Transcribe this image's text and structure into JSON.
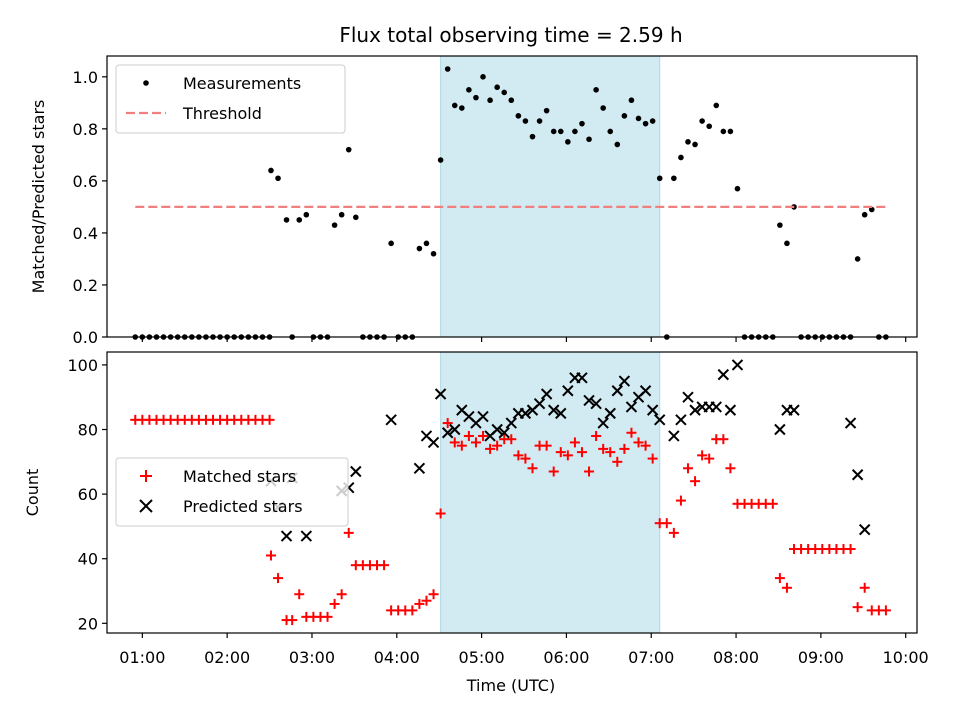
{
  "chart_data": {
    "title": "Flux total observing time = 2.59 h",
    "xlabel": "Time (UTC)",
    "x_unit": "hours UTC",
    "xlim": [
      "00:35",
      "10:08"
    ],
    "x_ticks": [
      "01:00",
      "02:00",
      "03:00",
      "04:00",
      "05:00",
      "06:00",
      "07:00",
      "08:00",
      "09:00",
      "10:00"
    ],
    "highlight_span": {
      "start": "04:31",
      "end": "07:06",
      "color": "#add8e6"
    },
    "panels": [
      {
        "type": "scatter",
        "ylabel": "Matched/Predicted stars",
        "ylim": [
          0,
          1.08
        ],
        "y_ticks": [
          "0.0",
          "0.2",
          "0.4",
          "0.6",
          "0.8",
          "1.0"
        ],
        "legend": "top-left",
        "series": [
          {
            "name": "Measurements",
            "marker": "dot",
            "color": "#000000",
            "x": [
              "00:55",
              "01:00",
              "01:05",
              "01:10",
              "01:15",
              "01:20",
              "01:25",
              "01:30",
              "01:35",
              "01:40",
              "01:45",
              "01:50",
              "01:55",
              "02:00",
              "02:05",
              "02:10",
              "02:15",
              "02:20",
              "02:25",
              "02:30",
              "02:31",
              "02:36",
              "02:42",
              "02:46",
              "02:51",
              "02:56",
              "03:01",
              "03:06",
              "03:11",
              "03:16",
              "03:21",
              "03:26",
              "03:31",
              "03:36",
              "03:41",
              "03:46",
              "03:51",
              "03:56",
              "04:01",
              "04:06",
              "04:11",
              "04:16",
              "04:21",
              "04:26",
              "04:31",
              "04:36",
              "04:41",
              "04:46",
              "04:51",
              "04:56",
              "05:01",
              "05:06",
              "05:11",
              "05:16",
              "05:21",
              "05:26",
              "05:31",
              "05:36",
              "05:41",
              "05:46",
              "05:51",
              "05:56",
              "06:01",
              "06:06",
              "06:11",
              "06:16",
              "06:21",
              "06:26",
              "06:31",
              "06:36",
              "06:41",
              "06:46",
              "06:51",
              "06:56",
              "07:01",
              "07:06",
              "07:11",
              "07:16",
              "07:21",
              "07:26",
              "07:31",
              "07:36",
              "07:41",
              "07:46",
              "07:51",
              "07:56",
              "08:01",
              "08:06",
              "08:11",
              "08:16",
              "08:21",
              "08:26",
              "08:31",
              "08:36",
              "08:41",
              "08:46",
              "08:51",
              "08:56",
              "09:01",
              "09:06",
              "09:11",
              "09:16",
              "09:21",
              "09:26",
              "09:31",
              "09:36",
              "09:41",
              "09:46"
            ],
            "y": [
              0,
              0,
              0,
              0,
              0,
              0,
              0,
              0,
              0,
              0,
              0,
              0,
              0,
              0,
              0,
              0,
              0,
              0,
              0,
              0,
              0.64,
              0.61,
              0.45,
              0,
              0.45,
              0.47,
              0,
              0,
              0,
              0.43,
              0.47,
              0.72,
              0.46,
              0,
              0,
              0,
              0,
              0.36,
              0,
              0,
              0,
              0.34,
              0.36,
              0.32,
              0.68,
              1.03,
              0.89,
              0.88,
              0.95,
              0.92,
              1.0,
              0.91,
              0.96,
              0.94,
              0.91,
              0.85,
              0.83,
              0.77,
              0.83,
              0.87,
              0.79,
              0.79,
              0.75,
              0.79,
              0.82,
              0.76,
              0.95,
              0.88,
              0.79,
              0.74,
              0.85,
              0.91,
              0.84,
              0.82,
              0.83,
              0.61,
              0,
              0.61,
              0.69,
              0.75,
              0.74,
              0.83,
              0.81,
              0.89,
              0.79,
              0.79,
              0.57,
              0,
              0,
              0,
              0,
              0,
              0.43,
              0.36,
              0.5,
              0,
              0,
              0,
              0,
              0,
              0,
              0,
              0,
              0.3,
              0.47,
              0.49,
              0,
              0
            ]
          },
          {
            "name": "Threshold",
            "type": "line",
            "style": "dashed",
            "color": "#f08080",
            "x": [
              "00:55",
              "09:46"
            ],
            "y": [
              0.5,
              0.5
            ]
          }
        ]
      },
      {
        "type": "scatter",
        "ylabel": "Count",
        "ylim": [
          17,
          104
        ],
        "y_ticks": [
          "20",
          "40",
          "60",
          "80",
          "100"
        ],
        "legend": "center-left",
        "series": [
          {
            "name": "Matched stars",
            "marker": "plus",
            "color": "#ff0000",
            "x": [
              "00:55",
              "01:00",
              "01:05",
              "01:10",
              "01:15",
              "01:20",
              "01:25",
              "01:30",
              "01:35",
              "01:40",
              "01:45",
              "01:50",
              "01:55",
              "02:00",
              "02:05",
              "02:10",
              "02:15",
              "02:20",
              "02:25",
              "02:30",
              "02:31",
              "02:36",
              "02:42",
              "02:46",
              "02:51",
              "02:56",
              "03:01",
              "03:06",
              "03:11",
              "03:16",
              "03:21",
              "03:26",
              "03:31",
              "03:36",
              "03:41",
              "03:46",
              "03:51",
              "03:56",
              "04:01",
              "04:06",
              "04:11",
              "04:16",
              "04:21",
              "04:26",
              "04:31",
              "04:36",
              "04:41",
              "04:46",
              "04:51",
              "04:56",
              "05:01",
              "05:06",
              "05:11",
              "05:16",
              "05:21",
              "05:26",
              "05:31",
              "05:36",
              "05:41",
              "05:46",
              "05:51",
              "05:56",
              "06:01",
              "06:06",
              "06:11",
              "06:16",
              "06:21",
              "06:26",
              "06:31",
              "06:36",
              "06:41",
              "06:46",
              "06:51",
              "06:56",
              "07:01",
              "07:06",
              "07:11",
              "07:16",
              "07:21",
              "07:26",
              "07:31",
              "07:36",
              "07:41",
              "07:46",
              "07:51",
              "07:56",
              "08:01",
              "08:06",
              "08:11",
              "08:16",
              "08:21",
              "08:26",
              "08:31",
              "08:36",
              "08:41",
              "08:46",
              "08:51",
              "08:56",
              "09:01",
              "09:06",
              "09:11",
              "09:16",
              "09:21",
              "09:26",
              "09:31",
              "09:36",
              "09:41",
              "09:46"
            ],
            "y": [
              83,
              83,
              83,
              83,
              83,
              83,
              83,
              83,
              83,
              83,
              83,
              83,
              83,
              83,
              83,
              83,
              83,
              83,
              83,
              83,
              41,
              34,
              21,
              21,
              29,
              22,
              22,
              22,
              22,
              26,
              29,
              48,
              38,
              38,
              38,
              38,
              38,
              24,
              24,
              24,
              24,
              26,
              27,
              29,
              54,
              82,
              76,
              75,
              78,
              76,
              78,
              74,
              75,
              77,
              77,
              72,
              71,
              68,
              75,
              75,
              67,
              73,
              72,
              76,
              73,
              67,
              78,
              74,
              73,
              70,
              74,
              79,
              76,
              75,
              71,
              51,
              51,
              48,
              58,
              68,
              64,
              72,
              71,
              77,
              77,
              68,
              57,
              57,
              57,
              57,
              57,
              57,
              34,
              31,
              43,
              43,
              43,
              43,
              43,
              43,
              43,
              43,
              43,
              25,
              31,
              24,
              24,
              24
            ]
          },
          {
            "name": "Predicted stars",
            "marker": "x",
            "color": "#000000",
            "x": [
              "02:31",
              "02:36",
              "02:42",
              "02:46",
              "02:56",
              "03:21",
              "03:26",
              "03:31",
              "03:56",
              "04:16",
              "04:21",
              "04:26",
              "04:31",
              "04:36",
              "04:41",
              "04:46",
              "04:51",
              "04:56",
              "05:01",
              "05:06",
              "05:11",
              "05:16",
              "05:21",
              "05:26",
              "05:31",
              "05:36",
              "05:41",
              "05:46",
              "05:51",
              "05:56",
              "06:01",
              "06:06",
              "06:11",
              "06:16",
              "06:21",
              "06:26",
              "06:31",
              "06:36",
              "06:41",
              "06:46",
              "06:51",
              "06:56",
              "07:01",
              "07:06",
              "07:16",
              "07:21",
              "07:26",
              "07:31",
              "07:36",
              "07:41",
              "07:46",
              "07:51",
              "07:56",
              "08:01",
              "08:31",
              "08:36",
              "08:41",
              "09:21",
              "09:26",
              "09:31"
            ],
            "y": [
              64,
              56,
              47,
              65,
              47,
              61,
              62,
              67,
              83,
              68,
              78,
              76,
              91,
              79,
              80,
              86,
              84,
              82,
              84,
              78,
              80,
              79,
              82,
              85,
              85,
              86,
              88,
              91,
              86,
              85,
              92,
              96,
              96,
              89,
              88,
              82,
              85,
              92,
              95,
              87,
              90,
              92,
              86,
              83,
              78,
              83,
              90,
              86,
              87,
              87,
              87,
              97,
              86,
              100,
              80,
              86,
              86,
              82,
              66,
              49
            ]
          }
        ]
      }
    ]
  }
}
